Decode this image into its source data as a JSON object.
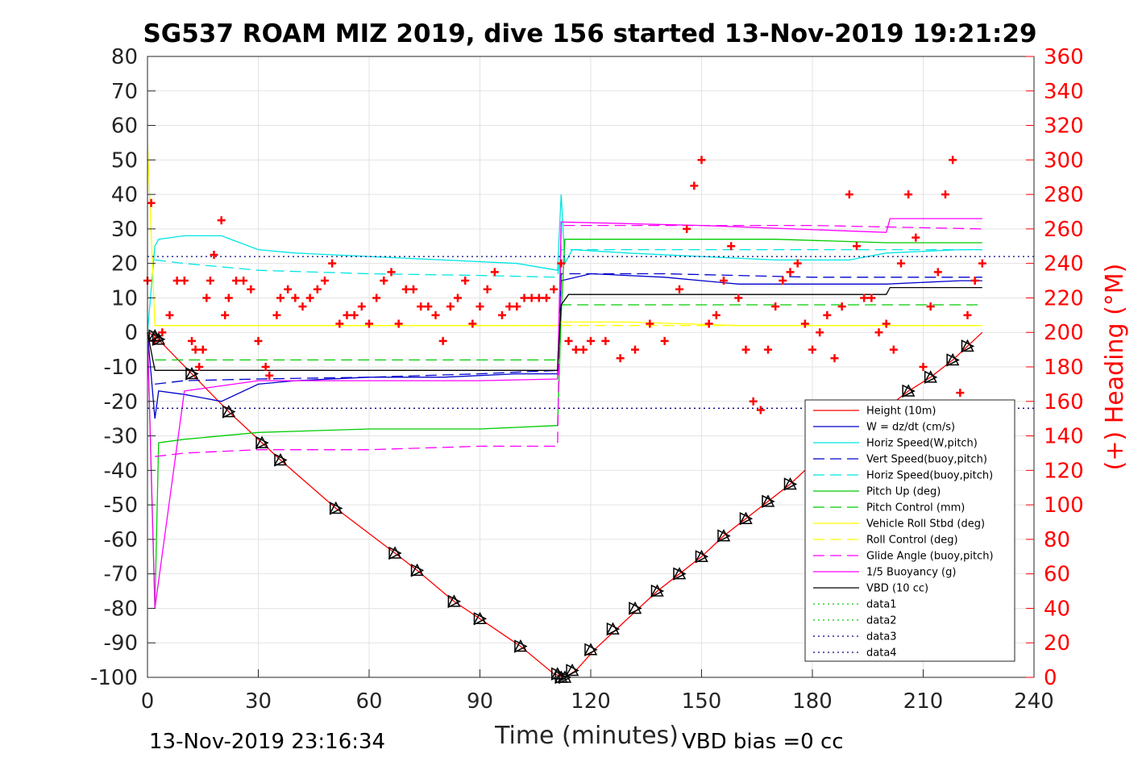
{
  "chart_data": {
    "type": "line",
    "title": "SG537 ROAM MIZ 2019, dive 156 started 13-Nov-2019 19:21:29",
    "xlabel": "Time (minutes)",
    "ylabel_right": "(+) Heading (°M)",
    "footer_left": "13-Nov-2019 23:16:34",
    "footer_right": "VBD bias =0 cc",
    "xlim": [
      0,
      240
    ],
    "ylim": [
      -100,
      80
    ],
    "ylim_right": [
      0,
      360
    ],
    "x_ticks": [
      "0",
      "30",
      "60",
      "90",
      "120",
      "150",
      "180",
      "210",
      "240"
    ],
    "y_ticks": [
      "80",
      "70",
      "60",
      "50",
      "40",
      "30",
      "20",
      "10",
      "0",
      "-10",
      "-20",
      "-30",
      "-40",
      "-50",
      "-60",
      "-70",
      "-80",
      "-90",
      "-100"
    ],
    "y_right_ticks": [
      "360",
      "340",
      "320",
      "300",
      "280",
      "260",
      "240",
      "220",
      "200",
      "180",
      "160",
      "140",
      "120",
      "100",
      "80",
      "60",
      "40",
      "20",
      "0"
    ],
    "grid": true,
    "legend_position": "lower-right",
    "series": [
      {
        "name": "Height (10m)",
        "color": "#ff0000",
        "style": "solid",
        "x": [
          0,
          2,
          12,
          22,
          31,
          36,
          51,
          67,
          73,
          83,
          90,
          101,
          110,
          113,
          116,
          121,
          127,
          133,
          138,
          144,
          150,
          156,
          162,
          168,
          174,
          180,
          190,
          200,
          206,
          212,
          218,
          222,
          226
        ],
        "y": [
          0,
          -1,
          -12,
          -23,
          -32,
          -37,
          -51,
          -64,
          -69,
          -78,
          -83,
          -91,
          -99,
          -100,
          -98,
          -92,
          -86,
          -80,
          -75,
          -70,
          -65,
          -59,
          -54,
          -49,
          -44,
          -38,
          -31,
          -22,
          -17,
          -13,
          -8,
          -4,
          0
        ]
      },
      {
        "name": "W = dz/dt (cm/s)",
        "color": "#0000cc",
        "style": "solid",
        "x": [
          0,
          2,
          3,
          10,
          20,
          30,
          40,
          60,
          80,
          100,
          111,
          112,
          120,
          140,
          160,
          180,
          200,
          220,
          226
        ],
        "y": [
          0,
          -25,
          -17,
          -18,
          -20,
          -15,
          -14,
          -13,
          -13,
          -12,
          -12,
          15,
          17,
          16,
          14,
          14,
          14,
          15,
          15
        ]
      },
      {
        "name": "Horiz Speed(W,pitch)",
        "color": "#00e5e5",
        "style": "solid",
        "x": [
          0,
          2,
          3,
          10,
          20,
          30,
          40,
          60,
          80,
          100,
          111,
          112,
          113,
          115,
          130,
          150,
          170,
          190,
          200,
          220,
          226
        ],
        "y": [
          0,
          25,
          27,
          28,
          28,
          24,
          23,
          22,
          21,
          20,
          18,
          40,
          20,
          24,
          23,
          22,
          21,
          21,
          23,
          24,
          24
        ]
      },
      {
        "name": "Vert Speed(buoy,pitch)",
        "color": "#0000cc",
        "style": "dashed",
        "x": [
          2,
          10,
          30,
          60,
          90,
          111,
          112,
          140,
          180,
          226
        ],
        "y": [
          -15,
          -14,
          -13.5,
          -13,
          -12,
          -11,
          17,
          17,
          16,
          16
        ]
      },
      {
        "name": "Horiz Speed(buoy,pitch)",
        "color": "#00e5e5",
        "style": "dashed",
        "x": [
          2,
          10,
          30,
          60,
          90,
          111,
          112,
          140,
          180,
          226
        ],
        "y": [
          21,
          20,
          18,
          17,
          16.5,
          16,
          24,
          24,
          24,
          24
        ]
      },
      {
        "name": "Pitch Up (deg)",
        "color": "#00cc00",
        "style": "solid",
        "x": [
          0,
          2,
          3,
          10,
          30,
          60,
          90,
          111,
          112,
          113,
          130,
          170,
          200,
          226
        ],
        "y": [
          0,
          -80,
          -32,
          -31,
          -29,
          -28,
          -28,
          -27,
          5,
          27,
          27,
          27,
          26,
          26
        ]
      },
      {
        "name": "Pitch Control (mm)",
        "color": "#00cc00",
        "style": "dashed",
        "x": [
          2,
          111,
          112,
          226
        ],
        "y": [
          -8,
          -8,
          8,
          8
        ]
      },
      {
        "name": "Vehicle Roll Stbd (deg)",
        "color": "#ffff00",
        "style": "solid",
        "x": [
          0,
          2,
          10,
          30,
          60,
          90,
          111,
          112,
          130,
          160,
          200,
          226
        ],
        "y": [
          55,
          2,
          2,
          2,
          2,
          2,
          2,
          3,
          3,
          2,
          2,
          2
        ]
      },
      {
        "name": "Roll Control (deg)",
        "color": "#ffff00",
        "style": "dashed",
        "x": [
          2,
          111,
          226
        ],
        "y": [
          2,
          2,
          2
        ]
      },
      {
        "name": "Glide Angle (buoy,pitch)",
        "color": "#ff00ff",
        "style": "dashed",
        "x": [
          2,
          10,
          30,
          60,
          90,
          111,
          112,
          140,
          180,
          226
        ],
        "y": [
          -36,
          -35,
          -34,
          -34,
          -33,
          -33,
          31,
          31,
          31,
          30
        ]
      },
      {
        "name": "1/5 Buoyancy (g)",
        "color": "#ff00ff",
        "style": "solid",
        "x": [
          0,
          2,
          10,
          30,
          60,
          90,
          111,
          112,
          150,
          200,
          201,
          226
        ],
        "y": [
          0,
          -80,
          -17,
          -14,
          -14,
          -14,
          -13.5,
          32,
          31,
          29,
          33,
          33
        ]
      },
      {
        "name": "VBD (10 cc)",
        "color": "#000000",
        "style": "solid",
        "x": [
          0,
          2,
          111,
          112,
          114,
          200,
          201,
          226
        ],
        "y": [
          0,
          -11,
          -11,
          8,
          11,
          11,
          13,
          13
        ]
      },
      {
        "name": "data1",
        "color": "#00cc00",
        "style": "dotted",
        "x": [],
        "y": []
      },
      {
        "name": "data2",
        "color": "#00cc00",
        "style": "dotted",
        "x": [],
        "y": []
      },
      {
        "name": "data3",
        "color": "#000080",
        "style": "dotted",
        "x": [
          0,
          240
        ],
        "y": [
          22,
          22
        ]
      },
      {
        "name": "data4",
        "color": "#000080",
        "style": "dotted",
        "x": [
          0,
          240
        ],
        "y": [
          -22,
          -22
        ]
      }
    ],
    "heading_markers": {
      "color": "#ff0000",
      "marker": "+",
      "axis": "right",
      "x": [
        0,
        1,
        2,
        4,
        6,
        8,
        10,
        12,
        13,
        14,
        15,
        16,
        17,
        18,
        20,
        21,
        22,
        24,
        26,
        28,
        30,
        32,
        33,
        35,
        36,
        38,
        40,
        42,
        44,
        46,
        48,
        50,
        52,
        54,
        56,
        58,
        60,
        62,
        64,
        66,
        68,
        70,
        72,
        74,
        76,
        78,
        80,
        82,
        84,
        86,
        88,
        90,
        92,
        94,
        96,
        98,
        100,
        102,
        104,
        106,
        108,
        110,
        112,
        114,
        116,
        118,
        120,
        124,
        128,
        132,
        136,
        140,
        144,
        146,
        148,
        150,
        152,
        154,
        156,
        158,
        160,
        162,
        164,
        166,
        168,
        170,
        172,
        174,
        176,
        178,
        180,
        182,
        184,
        186,
        188,
        190,
        192,
        194,
        196,
        198,
        200,
        202,
        204,
        206,
        208,
        210,
        212,
        214,
        216,
        218,
        220,
        222,
        224,
        226
      ],
      "y": [
        230,
        275,
        195,
        200,
        210,
        230,
        230,
        195,
        190,
        180,
        190,
        220,
        230,
        245,
        265,
        210,
        220,
        230,
        230,
        225,
        195,
        180,
        175,
        210,
        220,
        225,
        220,
        215,
        220,
        225,
        230,
        240,
        205,
        210,
        210,
        215,
        205,
        220,
        230,
        235,
        205,
        225,
        225,
        215,
        215,
        210,
        195,
        215,
        220,
        230,
        205,
        215,
        225,
        235,
        210,
        215,
        215,
        220,
        220,
        220,
        220,
        225,
        240,
        195,
        190,
        190,
        195,
        195,
        185,
        190,
        205,
        195,
        225,
        260,
        285,
        300,
        205,
        210,
        230,
        250,
        220,
        190,
        160,
        155,
        190,
        215,
        230,
        235,
        240,
        205,
        190,
        200,
        210,
        185,
        215,
        280,
        250,
        220,
        220,
        200,
        205,
        190,
        240,
        280,
        255,
        180,
        215,
        235,
        280,
        300,
        165,
        210,
        230,
        240
      ]
    },
    "depth_markers": {
      "color": "#000000",
      "marker": "triangle",
      "x": [
        2,
        3,
        12,
        22,
        31,
        36,
        51,
        67,
        73,
        83,
        90,
        101,
        111,
        112,
        113,
        115,
        120,
        126,
        132,
        138,
        144,
        150,
        156,
        162,
        168,
        174,
        206,
        212,
        218,
        222
      ],
      "y": [
        -1,
        -2,
        -12,
        -23,
        -32,
        -37,
        -51,
        -64,
        -69,
        -78,
        -83,
        -91,
        -99,
        -100,
        -100,
        -98,
        -92,
        -86,
        -80,
        -75,
        -70,
        -65,
        -59,
        -54,
        -49,
        -44,
        -17,
        -13,
        -8,
        -4
      ]
    }
  }
}
